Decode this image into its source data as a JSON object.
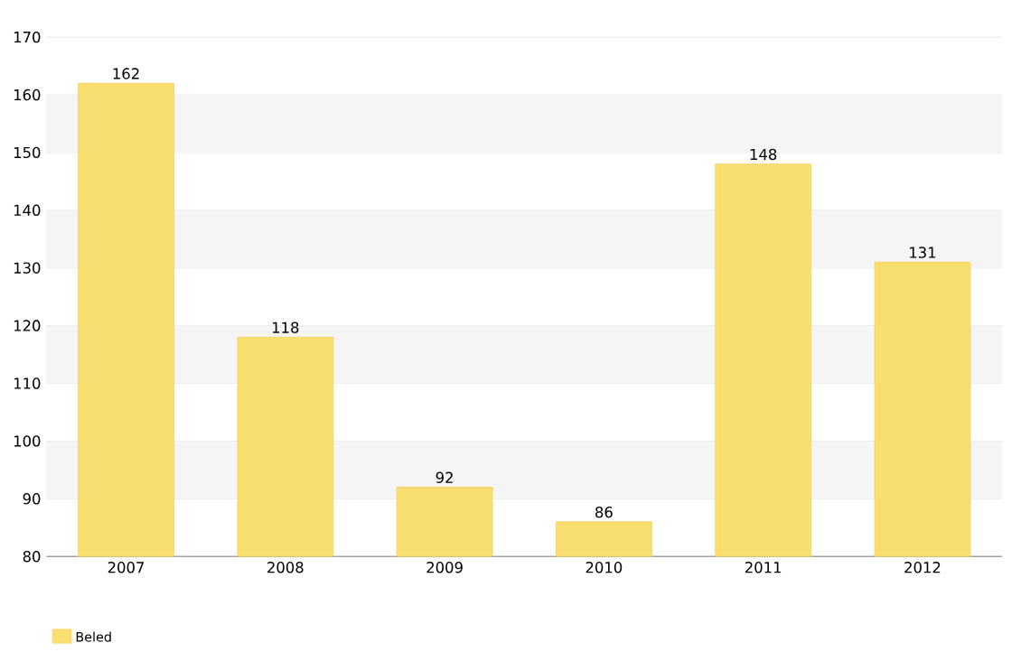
{
  "chart_data": {
    "type": "bar",
    "categories": [
      "2007",
      "2008",
      "2009",
      "2010",
      "2011",
      "2012"
    ],
    "series": [
      {
        "name": "Beled",
        "color": "#f9df70",
        "values": [
          162,
          118,
          92,
          86,
          148,
          131
        ]
      }
    ],
    "ylim": [
      80,
      170
    ],
    "yticks": [
      80,
      90,
      100,
      110,
      120,
      130,
      140,
      150,
      160,
      170
    ],
    "grid": "y",
    "legend": "bottom left",
    "data_labels": true
  }
}
